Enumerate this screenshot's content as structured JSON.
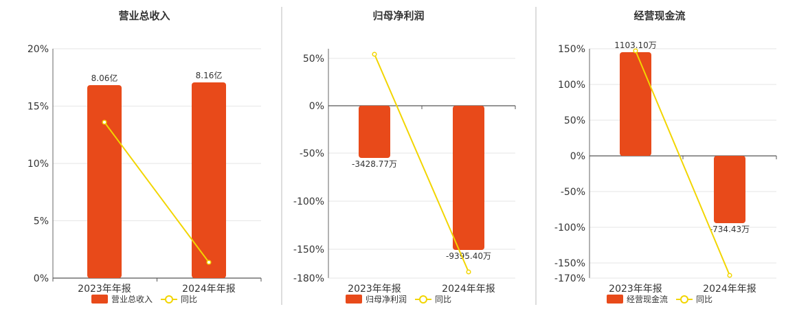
{
  "chart_data": [
    {
      "type": "bar",
      "title": "营业总收入",
      "categories": [
        "2023年年报",
        "2024年年报"
      ],
      "series": [
        {
          "name": "营业总收入",
          "values": [
            8.06,
            8.16
          ],
          "value_labels": [
            "8.06亿",
            "8.16亿"
          ],
          "color": "#E84A1A"
        },
        {
          "name": "同比",
          "type": "line",
          "values": [
            13.5,
            1.3
          ],
          "color": "#F2D500"
        }
      ],
      "yticks": [
        "20%",
        "15%",
        "10%",
        "5%",
        "0%"
      ],
      "ylim": [
        0,
        20
      ]
    },
    {
      "type": "bar",
      "title": "归母净利润",
      "categories": [
        "2023年年报",
        "2024年年报"
      ],
      "series": [
        {
          "name": "归母净利润",
          "values": [
            -3428.77,
            -9395.4
          ],
          "value_labels": [
            "-3428.77万",
            "-9395.40万"
          ],
          "color": "#E84A1A"
        },
        {
          "name": "同比",
          "type": "line",
          "values": [
            54,
            -173
          ],
          "color": "#F2D500"
        }
      ],
      "yticks": [
        "50%",
        "0%",
        "-50%",
        "-100%",
        "-150%",
        "-180%"
      ],
      "ylim": [
        -180,
        60
      ]
    },
    {
      "type": "bar",
      "title": "经营现金流",
      "categories": [
        "2023年年报",
        "2024年年报"
      ],
      "series": [
        {
          "name": "经营现金流",
          "values": [
            1103.1,
            -734.43
          ],
          "value_labels": [
            "1103.10万",
            "-734.43万"
          ],
          "color": "#E84A1A"
        },
        {
          "name": "同比",
          "type": "line",
          "values": [
            146,
            -167
          ],
          "color": "#F2D500"
        }
      ],
      "yticks": [
        "150%",
        "100%",
        "50%",
        "0%",
        "-50%",
        "-100%",
        "-150%",
        "-170%"
      ],
      "ylim": [
        -170,
        150
      ]
    }
  ]
}
